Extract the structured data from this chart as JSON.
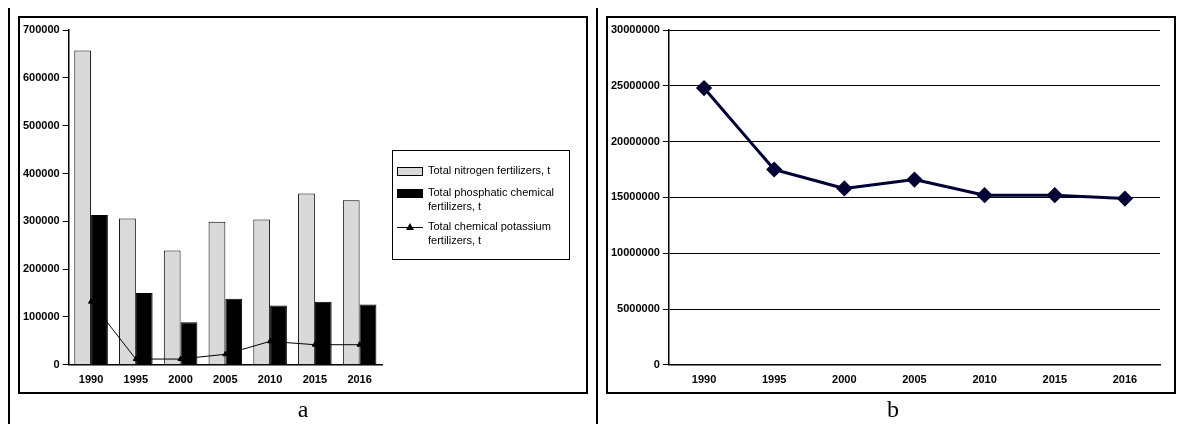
{
  "chart_data": [
    {
      "type": "bar",
      "categories": [
        "1990",
        "1995",
        "2000",
        "2005",
        "2010",
        "2015",
        "2016"
      ],
      "series": [
        {
          "name": "Total nitrogen fertilizers, t",
          "color": "#d9d9d9",
          "values": [
            657000,
            306000,
            239000,
            299000,
            304000,
            358000,
            344000
          ]
        },
        {
          "name": "Total phosphatic chemical fertilizers, t",
          "color": "#000000",
          "values": [
            313000,
            150000,
            89000,
            138000,
            124000,
            132000,
            126000
          ]
        },
        {
          "name": "Total chemical potassium fertilizers, t",
          "type": "line",
          "marker": "triangle",
          "color": "#000000",
          "values": [
            132000,
            12000,
            12000,
            22000,
            49000,
            42000,
            42000
          ]
        }
      ],
      "ylim": [
        0,
        700000
      ],
      "yticks": [
        0,
        100000,
        200000,
        300000,
        400000,
        500000,
        600000,
        700000
      ],
      "legend": "right",
      "annotations": [
        "a"
      ]
    },
    {
      "type": "line",
      "categories": [
        "1990",
        "1995",
        "2000",
        "2005",
        "2010",
        "2015",
        "2016"
      ],
      "series": [
        {
          "color": "#000033",
          "values": [
            24800000,
            17500000,
            15800000,
            16600000,
            15200000,
            15200000,
            14900000
          ]
        }
      ],
      "ylim": [
        0,
        30000000
      ],
      "yticks": [
        0,
        5000000,
        10000000,
        15000000,
        20000000,
        25000000,
        30000000
      ],
      "grid": "y",
      "marker": "diamond",
      "annotations": [
        "b"
      ]
    }
  ]
}
